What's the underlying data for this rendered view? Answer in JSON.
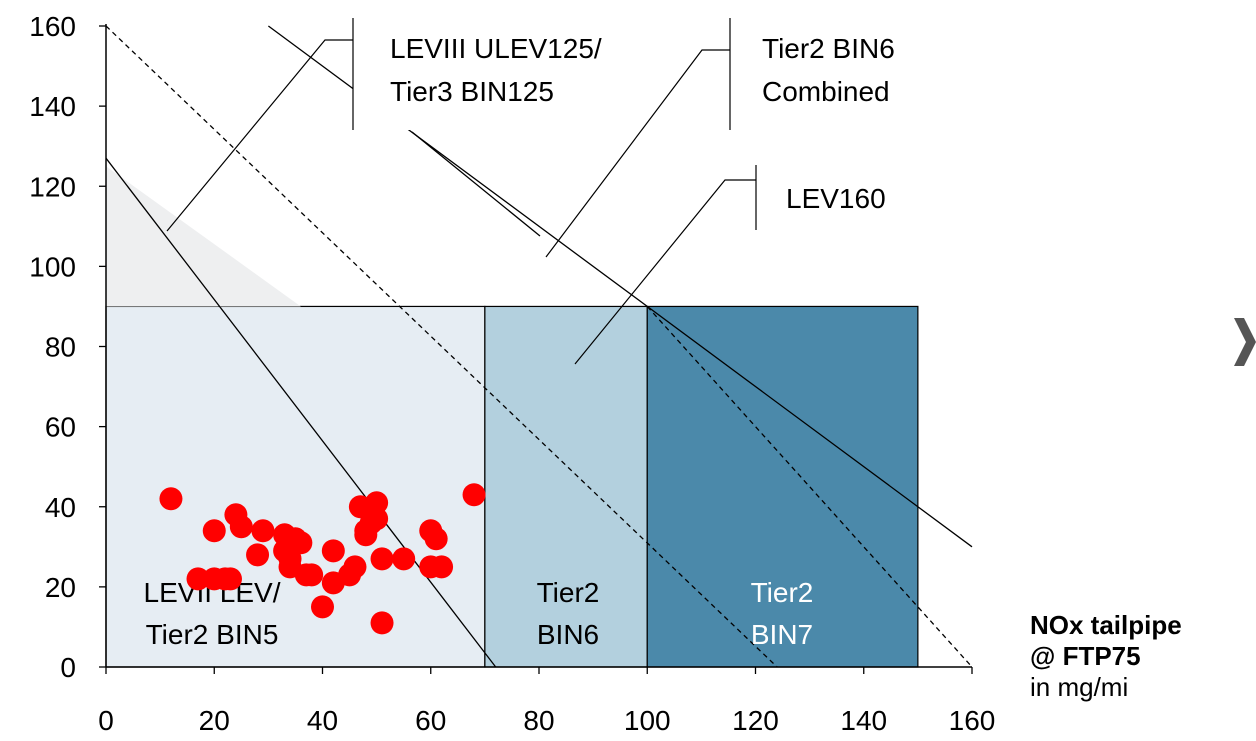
{
  "chart_data": {
    "type": "scatter",
    "xlim": [
      0,
      160
    ],
    "ylim": [
      0,
      160
    ],
    "x_ticks": [
      "0",
      "20",
      "40",
      "60",
      "80",
      "100",
      "120",
      "140",
      "160"
    ],
    "y_ticks": [
      "0",
      "20",
      "40",
      "60",
      "80",
      "100",
      "120",
      "140",
      "160"
    ],
    "xlabel": {
      "bold_line1": "NOx tailpipe",
      "bold_line2": "@ FTP75",
      "unit_line": "in mg/mi"
    },
    "ylabel": "",
    "grid": false,
    "regions": [
      {
        "x_range": [
          0,
          70
        ],
        "y_range": [
          0,
          90
        ],
        "fill": "#e6edf3",
        "label_lines": [
          "LEVII LEV/",
          "Tier2 BIN5"
        ],
        "label_color": "#000000"
      },
      {
        "x_range": [
          70,
          100
        ],
        "y_range": [
          0,
          90
        ],
        "fill": "#b3d0de",
        "label_lines": [
          "Tier2",
          "BIN6"
        ],
        "label_color": "#000000"
      },
      {
        "x_range": [
          100,
          150
        ],
        "y_range": [
          0,
          90
        ],
        "fill": "#4b89aa",
        "label_lines": [
          "Tier2",
          "BIN7"
        ],
        "label_color": "#ffffff"
      },
      {
        "type": "triangle",
        "points": [
          [
            0,
            125
          ],
          [
            0,
            90
          ],
          [
            36,
            90
          ]
        ],
        "fill": "#eeeff0"
      }
    ],
    "limit_lines": [
      {
        "style": "solid",
        "from": [
          0,
          127
        ],
        "to": [
          72,
          0
        ]
      },
      {
        "style": "dashed",
        "from": [
          0,
          160
        ],
        "to": [
          124,
          0
        ]
      },
      {
        "style": "solid",
        "from": [
          30,
          160
        ],
        "to": [
          160,
          30
        ]
      },
      {
        "style": "dashed",
        "from": [
          100,
          90
        ],
        "to": [
          160,
          0
        ]
      }
    ],
    "annotations": [
      {
        "text_lines": [
          "LEVIII ULEV125/",
          "Tier3 BIN125"
        ],
        "points_to": [
          11,
          89
        ]
      },
      {
        "text_lines": [
          "Tier2 BIN6",
          "Combined"
        ],
        "points_to": [
          81,
          102
        ]
      },
      {
        "text_lines": [
          "LEV160"
        ],
        "points_to": [
          86,
          73
        ]
      }
    ],
    "series": [
      {
        "marker_color": "#ff0000",
        "points": [
          [
            12,
            42
          ],
          [
            17,
            22
          ],
          [
            20,
            22
          ],
          [
            20,
            34
          ],
          [
            22,
            22
          ],
          [
            23,
            22
          ],
          [
            24,
            38
          ],
          [
            25,
            35
          ],
          [
            28,
            28
          ],
          [
            29,
            34
          ],
          [
            33,
            33
          ],
          [
            33,
            29
          ],
          [
            34,
            27
          ],
          [
            34,
            25
          ],
          [
            35,
            32
          ],
          [
            36,
            31
          ],
          [
            37,
            23
          ],
          [
            38,
            23
          ],
          [
            40,
            15
          ],
          [
            42,
            29
          ],
          [
            42,
            21
          ],
          [
            45,
            23
          ],
          [
            46,
            25
          ],
          [
            47,
            40
          ],
          [
            48,
            33
          ],
          [
            48,
            34
          ],
          [
            49,
            36
          ],
          [
            50,
            37
          ],
          [
            50,
            41
          ],
          [
            51,
            11
          ],
          [
            51,
            27
          ],
          [
            55,
            27
          ],
          [
            60,
            25
          ],
          [
            60,
            34
          ],
          [
            61,
            32
          ],
          [
            62,
            25
          ],
          [
            68,
            43
          ]
        ]
      }
    ]
  },
  "icons": {
    "nav_arrow": "chevron-right-icon"
  }
}
